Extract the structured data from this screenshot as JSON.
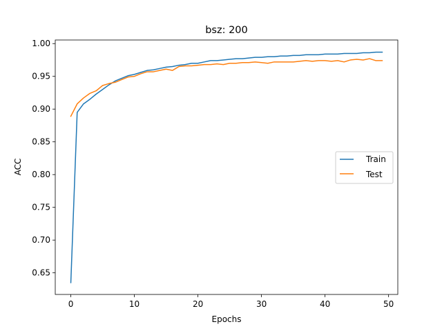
{
  "chart_data": {
    "type": "line",
    "title": "bsz: 200",
    "xlabel": "Epochs",
    "ylabel": "ACC",
    "xlim": [
      -2.45,
      51.45
    ],
    "ylim": [
      0.617,
      1.0055
    ],
    "xticks": [
      0,
      10,
      20,
      30,
      40,
      50
    ],
    "yticks": [
      0.65,
      0.7,
      0.75,
      0.8,
      0.85,
      0.9,
      0.95,
      1.0
    ],
    "ytick_labels": [
      "0.65",
      "0.70",
      "0.75",
      "0.80",
      "0.85",
      "0.90",
      "0.95",
      "1.00"
    ],
    "grid": false,
    "legend_position": "center-right",
    "x": [
      0,
      1,
      2,
      3,
      4,
      5,
      6,
      7,
      8,
      9,
      10,
      11,
      12,
      13,
      14,
      15,
      16,
      17,
      18,
      19,
      20,
      21,
      22,
      23,
      24,
      25,
      26,
      27,
      28,
      29,
      30,
      31,
      32,
      33,
      34,
      35,
      36,
      37,
      38,
      39,
      40,
      41,
      42,
      43,
      44,
      45,
      46,
      47,
      48,
      49
    ],
    "series": [
      {
        "name": "Train",
        "color": "#1f77b4",
        "values": [
          0.635,
          0.895,
          0.908,
          0.915,
          0.923,
          0.93,
          0.937,
          0.943,
          0.947,
          0.951,
          0.953,
          0.956,
          0.959,
          0.96,
          0.962,
          0.964,
          0.965,
          0.967,
          0.968,
          0.97,
          0.97,
          0.972,
          0.974,
          0.974,
          0.975,
          0.976,
          0.977,
          0.977,
          0.978,
          0.979,
          0.979,
          0.98,
          0.98,
          0.981,
          0.981,
          0.982,
          0.982,
          0.983,
          0.983,
          0.983,
          0.984,
          0.984,
          0.984,
          0.985,
          0.985,
          0.985,
          0.986,
          0.986,
          0.987,
          0.987
        ]
      },
      {
        "name": "Test",
        "color": "#ff7f0e",
        "values": [
          0.889,
          0.908,
          0.917,
          0.924,
          0.928,
          0.936,
          0.939,
          0.941,
          0.945,
          0.949,
          0.95,
          0.954,
          0.957,
          0.957,
          0.959,
          0.961,
          0.959,
          0.965,
          0.966,
          0.966,
          0.967,
          0.968,
          0.968,
          0.969,
          0.968,
          0.97,
          0.97,
          0.971,
          0.971,
          0.972,
          0.971,
          0.97,
          0.972,
          0.972,
          0.972,
          0.972,
          0.973,
          0.974,
          0.973,
          0.974,
          0.974,
          0.973,
          0.974,
          0.972,
          0.975,
          0.976,
          0.975,
          0.977,
          0.974,
          0.974
        ]
      }
    ]
  }
}
